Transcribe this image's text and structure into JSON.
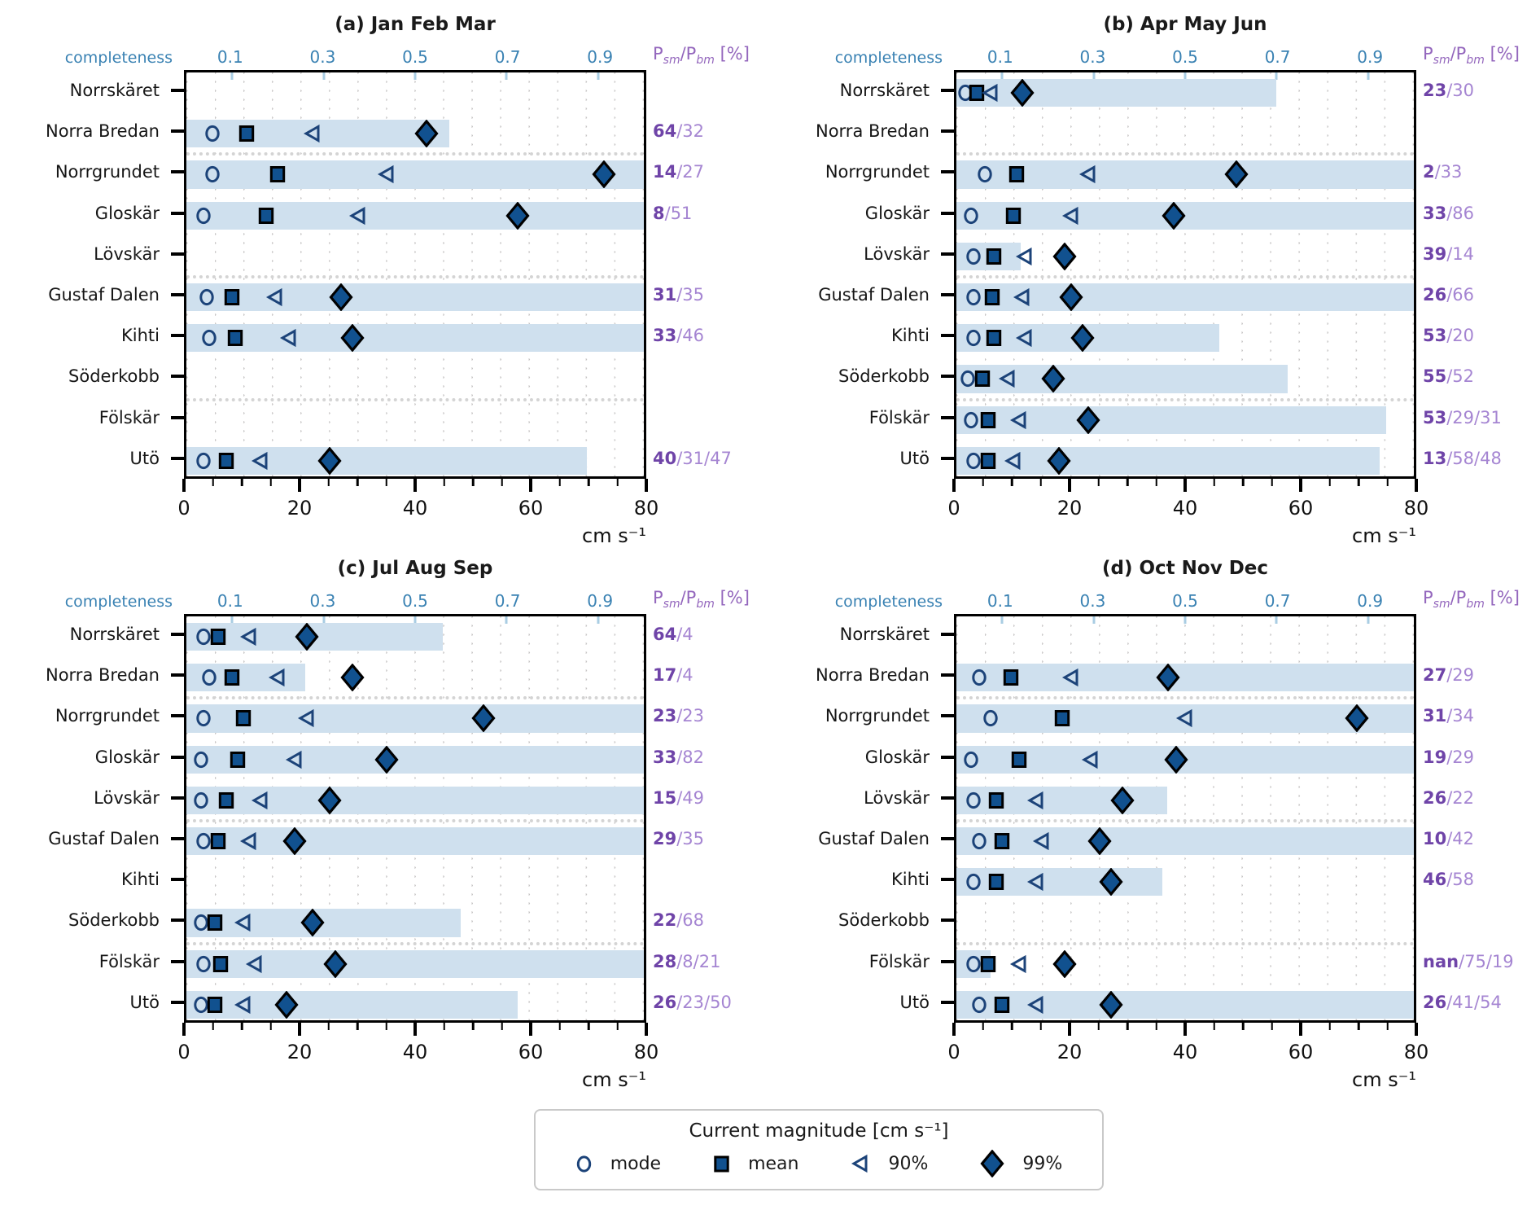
{
  "chart_data": {
    "type": "scatter",
    "x_axis": {
      "label": "cm s⁻¹",
      "min": 0,
      "max": 80,
      "major_ticks": [
        0,
        20,
        40,
        60,
        80
      ],
      "minor_tick_step": 5
    },
    "top_axis": {
      "label": "completeness",
      "min": 0,
      "max": 1,
      "ticks": [
        0.1,
        0.3,
        0.5,
        0.7,
        0.9
      ]
    },
    "right_axis": {
      "base1": "P",
      "sub1": "sm",
      "base2": "/P",
      "sub2": "bm",
      "unit": " [%]"
    },
    "marker_series": [
      "mode",
      "mean",
      "90%",
      "99%"
    ],
    "group_breaks_after_row_index": [
      1,
      4,
      7
    ],
    "grid": "dotted vertical every 5 cm/s",
    "panels": [
      {
        "title": "(a) Jan Feb Mar",
        "rows": [
          {
            "station": "Norrskäret",
            "completeness": null,
            "mode": null,
            "mean": null,
            "p90": null,
            "p99": null,
            "ratio_bold": null,
            "ratio_rest": null
          },
          {
            "station": "Norra Bredan",
            "completeness": 0.575,
            "mode": 4.5,
            "mean": 10.5,
            "p90": 22,
            "p99": 42,
            "ratio_bold": "64",
            "ratio_rest": "/32"
          },
          {
            "station": "Norrgrundet",
            "completeness": 1.0,
            "mode": 4.5,
            "mean": 16,
            "p90": 35,
            "p99": 73,
            "ratio_bold": "14",
            "ratio_rest": "/27"
          },
          {
            "station": "Gloskär",
            "completeness": 1.0,
            "mode": 3,
            "mean": 14,
            "p90": 30,
            "p99": 58,
            "ratio_bold": "8",
            "ratio_rest": "/51"
          },
          {
            "station": "Lövskär",
            "completeness": null,
            "mode": null,
            "mean": null,
            "p90": null,
            "p99": null,
            "ratio_bold": null,
            "ratio_rest": null
          },
          {
            "station": "Gustaf Dalen",
            "completeness": 1.0,
            "mode": 3.5,
            "mean": 8,
            "p90": 15.5,
            "p99": 27,
            "ratio_bold": "31",
            "ratio_rest": "/35"
          },
          {
            "station": "Kihti",
            "completeness": 1.0,
            "mode": 4,
            "mean": 8.5,
            "p90": 18,
            "p99": 29,
            "ratio_bold": "33",
            "ratio_rest": "/46"
          },
          {
            "station": "Söderkobb",
            "completeness": null,
            "mode": null,
            "mean": null,
            "p90": null,
            "p99": null,
            "ratio_bold": null,
            "ratio_rest": null
          },
          {
            "station": "Fölskär",
            "completeness": null,
            "mode": null,
            "mean": null,
            "p90": null,
            "p99": null,
            "ratio_bold": null,
            "ratio_rest": null
          },
          {
            "station": "Utö",
            "completeness": 0.875,
            "mode": 3,
            "mean": 7,
            "p90": 13,
            "p99": 25,
            "ratio_bold": "40",
            "ratio_rest": "/31/47"
          }
        ]
      },
      {
        "title": "(b) Apr May Jun",
        "rows": [
          {
            "station": "Norrskäret",
            "completeness": 0.7,
            "mode": 1.5,
            "mean": 3.5,
            "p90": 6,
            "p99": 11.5,
            "ratio_bold": "23",
            "ratio_rest": "/30"
          },
          {
            "station": "Norra Bredan",
            "completeness": null,
            "mode": null,
            "mean": null,
            "p90": null,
            "p99": null,
            "ratio_bold": null,
            "ratio_rest": null
          },
          {
            "station": "Norrgrundet",
            "completeness": 1.0,
            "mode": 5,
            "mean": 10.5,
            "p90": 23,
            "p99": 49,
            "ratio_bold": "2",
            "ratio_rest": "/33"
          },
          {
            "station": "Gloskär",
            "completeness": 1.0,
            "mode": 2.5,
            "mean": 10,
            "p90": 20,
            "p99": 38,
            "ratio_bold": "33",
            "ratio_rest": "/86"
          },
          {
            "station": "Lövskär",
            "completeness": 0.14,
            "mode": 3,
            "mean": 6.5,
            "p90": 12,
            "p99": 19,
            "ratio_bold": "39",
            "ratio_rest": "/14"
          },
          {
            "station": "Gustaf Dalen",
            "completeness": 1.0,
            "mode": 3,
            "mean": 6.3,
            "p90": 11.5,
            "p99": 20,
            "ratio_bold": "26",
            "ratio_rest": "/66"
          },
          {
            "station": "Kihti",
            "completeness": 0.575,
            "mode": 3,
            "mean": 6.5,
            "p90": 12,
            "p99": 22,
            "ratio_bold": "53",
            "ratio_rest": "/20"
          },
          {
            "station": "Söderkobb",
            "completeness": 0.725,
            "mode": 2,
            "mean": 4.5,
            "p90": 9,
            "p99": 17,
            "ratio_bold": "55",
            "ratio_rest": "/52"
          },
          {
            "station": "Fölskär",
            "completeness": 0.94,
            "mode": 2.5,
            "mean": 5.5,
            "p90": 11,
            "p99": 23,
            "ratio_bold": "53",
            "ratio_rest": "/29/31"
          },
          {
            "station": "Utö",
            "completeness": 0.925,
            "mode": 3,
            "mean": 5.5,
            "p90": 10,
            "p99": 18,
            "ratio_bold": "13",
            "ratio_rest": "/58/48"
          }
        ]
      },
      {
        "title": "(c) Jul Aug Sep",
        "rows": [
          {
            "station": "Norrskäret",
            "completeness": 0.56,
            "mode": 3,
            "mean": 5.5,
            "p90": 11,
            "p99": 21,
            "ratio_bold": "64",
            "ratio_rest": "/4"
          },
          {
            "station": "Norra Bredan",
            "completeness": 0.26,
            "mode": 4,
            "mean": 8,
            "p90": 16,
            "p99": 29,
            "ratio_bold": "17",
            "ratio_rest": "/4"
          },
          {
            "station": "Norrgrundet",
            "completeness": 1.0,
            "mode": 3,
            "mean": 10,
            "p90": 21,
            "p99": 52,
            "ratio_bold": "23",
            "ratio_rest": "/23"
          },
          {
            "station": "Gloskär",
            "completeness": 1.0,
            "mode": 2.5,
            "mean": 9,
            "p90": 19,
            "p99": 35,
            "ratio_bold": "33",
            "ratio_rest": "/82"
          },
          {
            "station": "Lövskär",
            "completeness": 1.0,
            "mode": 2.5,
            "mean": 7,
            "p90": 13,
            "p99": 25,
            "ratio_bold": "15",
            "ratio_rest": "/49"
          },
          {
            "station": "Gustaf Dalen",
            "completeness": 1.0,
            "mode": 3,
            "mean": 5.5,
            "p90": 11,
            "p99": 19,
            "ratio_bold": "29",
            "ratio_rest": "/35"
          },
          {
            "station": "Kihti",
            "completeness": null,
            "mode": null,
            "mean": null,
            "p90": null,
            "p99": null,
            "ratio_bold": null,
            "ratio_rest": null
          },
          {
            "station": "Söderkobb",
            "completeness": 0.6,
            "mode": 2.5,
            "mean": 5,
            "p90": 10,
            "p99": 22,
            "ratio_bold": "22",
            "ratio_rest": "/68"
          },
          {
            "station": "Fölskär",
            "completeness": 1.0,
            "mode": 3,
            "mean": 6,
            "p90": 12,
            "p99": 26,
            "ratio_bold": "28",
            "ratio_rest": "/8/21"
          },
          {
            "station": "Utö",
            "completeness": 0.725,
            "mode": 2.5,
            "mean": 5,
            "p90": 10,
            "p99": 17.5,
            "ratio_bold": "26",
            "ratio_rest": "/23/50"
          }
        ]
      },
      {
        "title": "(d) Oct Nov Dec",
        "rows": [
          {
            "station": "Norrskäret",
            "completeness": null,
            "mode": null,
            "mean": null,
            "p90": null,
            "p99": null,
            "ratio_bold": null,
            "ratio_rest": null
          },
          {
            "station": "Norra Bredan",
            "completeness": 1.0,
            "mode": 4,
            "mean": 9.5,
            "p90": 20,
            "p99": 37,
            "ratio_bold": "27",
            "ratio_rest": "/29"
          },
          {
            "station": "Norrgrundet",
            "completeness": 1.0,
            "mode": 6,
            "mean": 18.5,
            "p90": 40,
            "p99": 70,
            "ratio_bold": "31",
            "ratio_rest": "/34"
          },
          {
            "station": "Gloskär",
            "completeness": 1.0,
            "mode": 2.5,
            "mean": 11,
            "p90": 23.5,
            "p99": 38.5,
            "ratio_bold": "19",
            "ratio_rest": "/29"
          },
          {
            "station": "Lövskär",
            "completeness": 0.46,
            "mode": 3,
            "mean": 7,
            "p90": 14,
            "p99": 29,
            "ratio_bold": "26",
            "ratio_rest": "/22"
          },
          {
            "station": "Gustaf Dalen",
            "completeness": 1.0,
            "mode": 4,
            "mean": 8,
            "p90": 15,
            "p99": 25,
            "ratio_bold": "10",
            "ratio_rest": "/42"
          },
          {
            "station": "Kihti",
            "completeness": 0.45,
            "mode": 3,
            "mean": 7,
            "p90": 14,
            "p99": 27,
            "ratio_bold": "46",
            "ratio_rest": "/58"
          },
          {
            "station": "Söderkobb",
            "completeness": null,
            "mode": null,
            "mean": null,
            "p90": null,
            "p99": null,
            "ratio_bold": null,
            "ratio_rest": null
          },
          {
            "station": "Fölskär",
            "completeness": 0.075,
            "mode": 3,
            "mean": 5.5,
            "p90": 11,
            "p99": 19,
            "ratio_bold": "nan",
            "ratio_rest": "/75/19"
          },
          {
            "station": "Utö",
            "completeness": 1.0,
            "mode": 4,
            "mean": 8,
            "p90": 14,
            "p99": 27,
            "ratio_bold": "26",
            "ratio_rest": "/41/54"
          }
        ]
      }
    ],
    "legend": {
      "title": "Current magnitude [cm s⁻¹]",
      "items": [
        {
          "marker": "mode",
          "label": "mode"
        },
        {
          "marker": "mean",
          "label": "mean"
        },
        {
          "marker": "p90",
          "label": "90%"
        },
        {
          "marker": "p99",
          "label": "99%"
        }
      ]
    },
    "colors": {
      "bar_fill": "#cfe0ee",
      "marker_fill": "#11518f",
      "marker_open_stroke": "#1c4379",
      "marker_filled_edge": "#000000",
      "completeness_blue": "#3a82b3",
      "completeness_tick": "#a9cde3",
      "ratio_header_purple": "#9467bd",
      "ratio_bold_purple": "#6f44a8",
      "ratio_light_purple": "#a585d2",
      "grid_dot_gray": "#c6c4c4",
      "separator_gray": "#d4d4d4",
      "spine_black": "#000000"
    }
  }
}
